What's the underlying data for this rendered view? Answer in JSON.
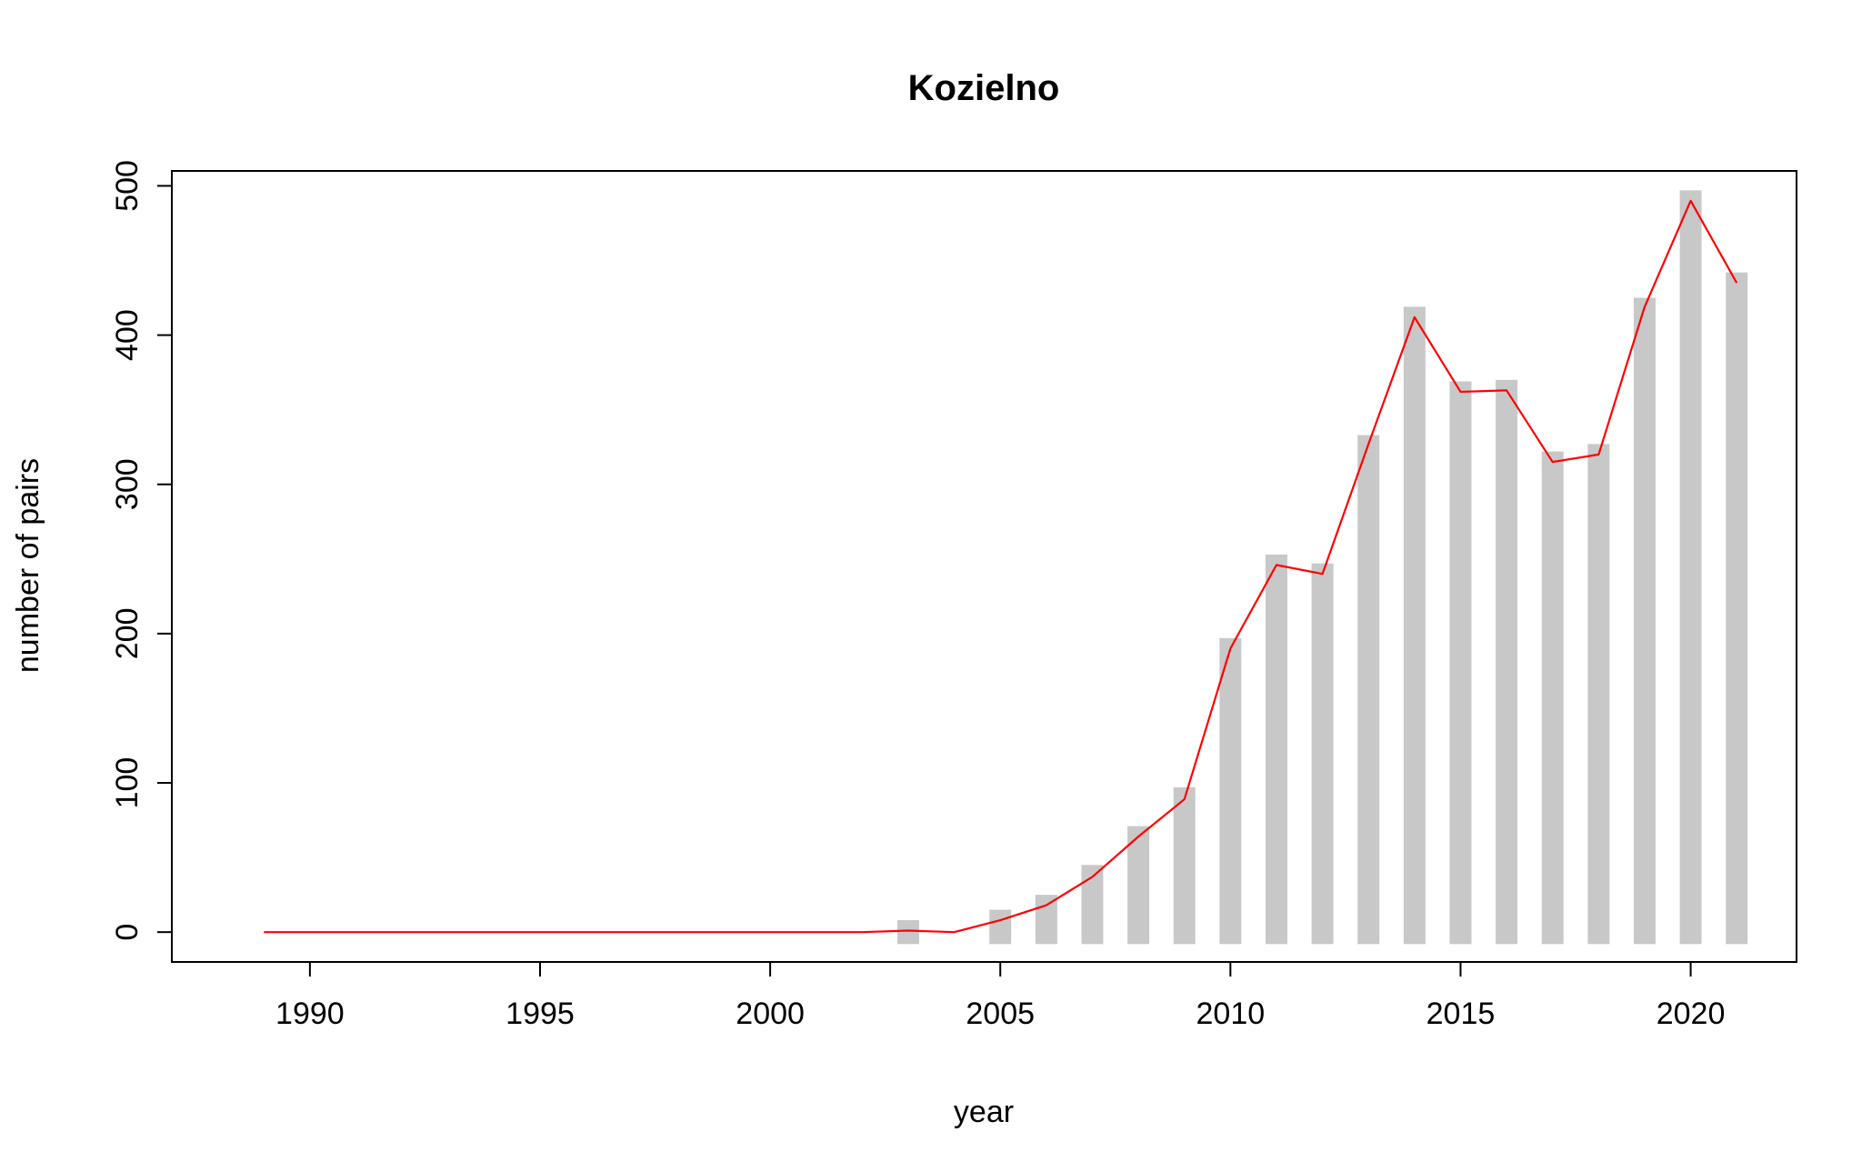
{
  "chart_data": {
    "type": "bar",
    "title": "Kozielno",
    "xlabel": "year",
    "ylabel": "number of pairs",
    "xlim": [
      1987,
      2022.3
    ],
    "ylim": [
      -20,
      510
    ],
    "x_ticks": [
      1990,
      1995,
      2000,
      2005,
      2010,
      2015,
      2020
    ],
    "x_tick_labels": [
      "1990",
      "1995",
      "2000",
      "2005",
      "2010",
      "2015",
      "2020"
    ],
    "y_ticks": [
      0,
      100,
      200,
      300,
      400,
      500
    ],
    "y_tick_labels": [
      "0",
      "100",
      "200",
      "300",
      "400",
      "500"
    ],
    "bar_baseline": -8,
    "bars": {
      "x": [
        2003,
        2005,
        2006,
        2007,
        2008,
        2009,
        2010,
        2011,
        2012,
        2013,
        2014,
        2015,
        2016,
        2017,
        2018,
        2019,
        2020,
        2021
      ],
      "values": [
        8,
        15,
        25,
        45,
        71,
        97,
        197,
        253,
        247,
        333,
        419,
        369,
        370,
        322,
        327,
        425,
        497,
        442
      ],
      "color": "#c8c8c8"
    },
    "series": [
      {
        "type": "line",
        "color": "#ff0000",
        "x": [
          1989,
          1990,
          1991,
          1992,
          1993,
          1994,
          1995,
          1996,
          1997,
          1998,
          1999,
          2000,
          2001,
          2002,
          2003,
          2004,
          2005,
          2006,
          2007,
          2008,
          2009,
          2010,
          2011,
          2012,
          2013,
          2014,
          2015,
          2016,
          2017,
          2018,
          2019,
          2020,
          2021
        ],
        "values": [
          0,
          0,
          0,
          0,
          0,
          0,
          0,
          0,
          0,
          0,
          0,
          0,
          0,
          0,
          1,
          0,
          8,
          18,
          37,
          64,
          89,
          190,
          246,
          240,
          327,
          412,
          362,
          363,
          315,
          320,
          419,
          490,
          435
        ]
      }
    ],
    "grid": false,
    "legend": "none"
  }
}
